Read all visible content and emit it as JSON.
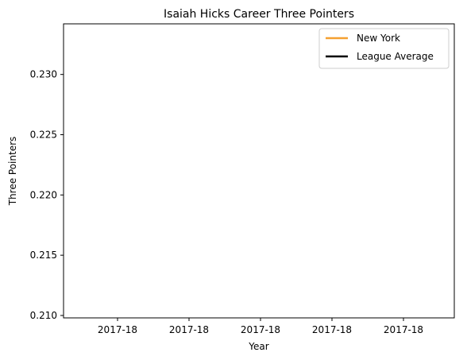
{
  "chart_data": {
    "type": "line",
    "title": "Isaiah Hicks Career Three Pointers",
    "xlabel": "Year",
    "ylabel": "Three Pointers",
    "x_tick_labels": [
      "2017-18",
      "2017-18",
      "2017-18",
      "2017-18",
      "2017-18"
    ],
    "y_ticks": [
      0.21,
      0.215,
      0.22,
      0.225,
      0.23
    ],
    "y_tick_labels": [
      "0.210",
      "0.215",
      "0.220",
      "0.225",
      "0.230"
    ],
    "ylim": [
      0.2098,
      0.2342
    ],
    "grid": false,
    "legend_position": "top-right",
    "series": [
      {
        "name": "New York",
        "color": "#f5a030",
        "x": [],
        "y": []
      },
      {
        "name": "League Average",
        "color": "#000000",
        "x": [],
        "y": []
      }
    ]
  }
}
